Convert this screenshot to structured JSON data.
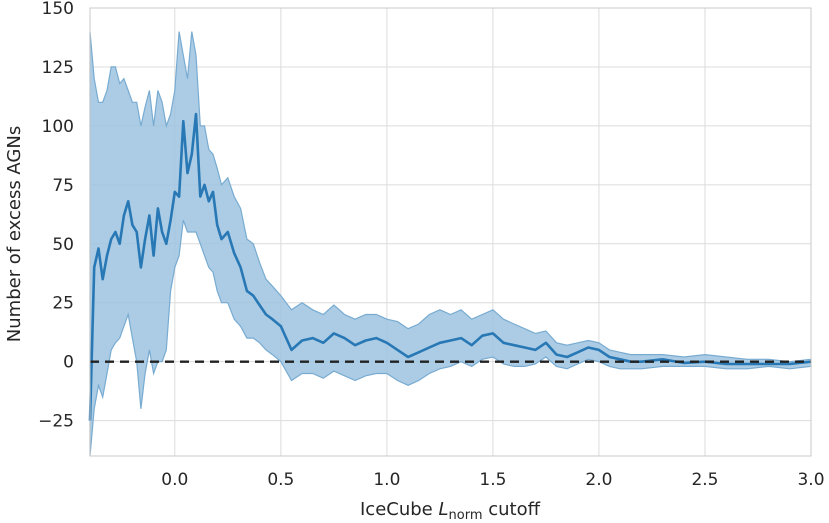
{
  "chart_data": {
    "type": "line",
    "title": "",
    "xlabel": {
      "prefix": "IceCube ",
      "var": "L",
      "sub": "norm",
      "suffix": " cutoff"
    },
    "ylabel": "Number of excess AGNs",
    "xlim": [
      -0.4,
      3.0
    ],
    "ylim": [
      -40,
      150
    ],
    "xticks": [
      0.0,
      0.5,
      1.0,
      1.5,
      2.0,
      2.5,
      3.0
    ],
    "xtick_labels": [
      "0.0",
      "0.5",
      "1.0",
      "1.5",
      "2.0",
      "2.5",
      "3.0"
    ],
    "yticks": [
      -25,
      0,
      25,
      50,
      75,
      100,
      125,
      150
    ],
    "ytick_labels": [
      "−25",
      "0",
      "25",
      "50",
      "75",
      "100",
      "125",
      "150"
    ],
    "grid": true,
    "reference_line": {
      "y": 0,
      "style": "dashed",
      "color": "#222222"
    },
    "colors": {
      "line": "#2878b5",
      "band_fill": "#9cc3df",
      "band_edge": "#78abd1"
    },
    "series": [
      {
        "x": [
          -0.4,
          -0.38,
          -0.36,
          -0.34,
          -0.32,
          -0.3,
          -0.28,
          -0.26,
          -0.24,
          -0.22,
          -0.2,
          -0.18,
          -0.16,
          -0.14,
          -0.12,
          -0.1,
          -0.08,
          -0.06,
          -0.04,
          -0.02,
          0.0,
          0.02,
          0.04,
          0.06,
          0.08,
          0.1,
          0.12,
          0.14,
          0.16,
          0.18,
          0.2,
          0.22,
          0.25,
          0.28,
          0.31,
          0.34,
          0.37,
          0.4,
          0.43,
          0.46,
          0.5,
          0.55,
          0.6,
          0.65,
          0.7,
          0.75,
          0.8,
          0.85,
          0.9,
          0.95,
          1.0,
          1.05,
          1.1,
          1.15,
          1.2,
          1.25,
          1.3,
          1.35,
          1.4,
          1.45,
          1.5,
          1.55,
          1.6,
          1.65,
          1.7,
          1.75,
          1.8,
          1.85,
          1.9,
          1.95,
          2.0,
          2.05,
          2.1,
          2.15,
          2.2,
          2.3,
          2.4,
          2.5,
          2.6,
          2.7,
          2.8,
          2.9,
          3.0
        ],
        "y": [
          -25,
          40,
          48,
          35,
          45,
          52,
          55,
          50,
          62,
          68,
          58,
          55,
          40,
          52,
          62,
          45,
          65,
          55,
          50,
          60,
          72,
          70,
          102,
          80,
          88,
          105,
          70,
          75,
          68,
          72,
          58,
          52,
          55,
          46,
          40,
          30,
          28,
          24,
          20,
          18,
          15,
          5,
          9,
          10,
          8,
          12,
          10,
          7,
          9,
          10,
          8,
          5,
          2,
          4,
          6,
          8,
          9,
          10,
          7,
          11,
          12,
          8,
          7,
          6,
          5,
          8,
          3,
          2,
          4,
          6,
          5,
          2,
          1,
          0,
          0,
          1,
          -0.5,
          0,
          -1,
          -1,
          -1,
          -1,
          0
        ],
        "lower": [
          -40,
          -20,
          -10,
          -15,
          -5,
          5,
          8,
          10,
          15,
          20,
          10,
          0,
          -20,
          -5,
          5,
          -5,
          0,
          0,
          5,
          30,
          40,
          45,
          60,
          55,
          55,
          55,
          50,
          45,
          40,
          38,
          30,
          25,
          25,
          18,
          15,
          10,
          10,
          8,
          5,
          3,
          0,
          -8,
          -5,
          -5,
          -7,
          -4,
          -6,
          -8,
          -6,
          -5,
          -5,
          -8,
          -10,
          -8,
          -5,
          -3,
          -2,
          0,
          -2,
          1,
          2,
          -1,
          -2,
          -2,
          -1,
          2,
          -2,
          -3,
          -1,
          1,
          0,
          -2,
          -3,
          -3,
          -3,
          -2,
          -2,
          -2,
          -3,
          -3,
          -2,
          -3,
          -2
        ],
        "upper": [
          140,
          120,
          110,
          110,
          115,
          125,
          125,
          118,
          120,
          115,
          110,
          110,
          100,
          108,
          115,
          100,
          115,
          110,
          100,
          105,
          115,
          140,
          130,
          120,
          140,
          130,
          100,
          100,
          90,
          88,
          82,
          75,
          78,
          70,
          65,
          52,
          50,
          42,
          35,
          32,
          28,
          22,
          25,
          22,
          20,
          24,
          20,
          18,
          20,
          20,
          18,
          17,
          14,
          16,
          20,
          22,
          20,
          22,
          18,
          20,
          22,
          18,
          16,
          14,
          12,
          13,
          8,
          7,
          8,
          9,
          8,
          5,
          4,
          3,
          3,
          3,
          2,
          3,
          2,
          1,
          1,
          0,
          1
        ]
      }
    ]
  }
}
